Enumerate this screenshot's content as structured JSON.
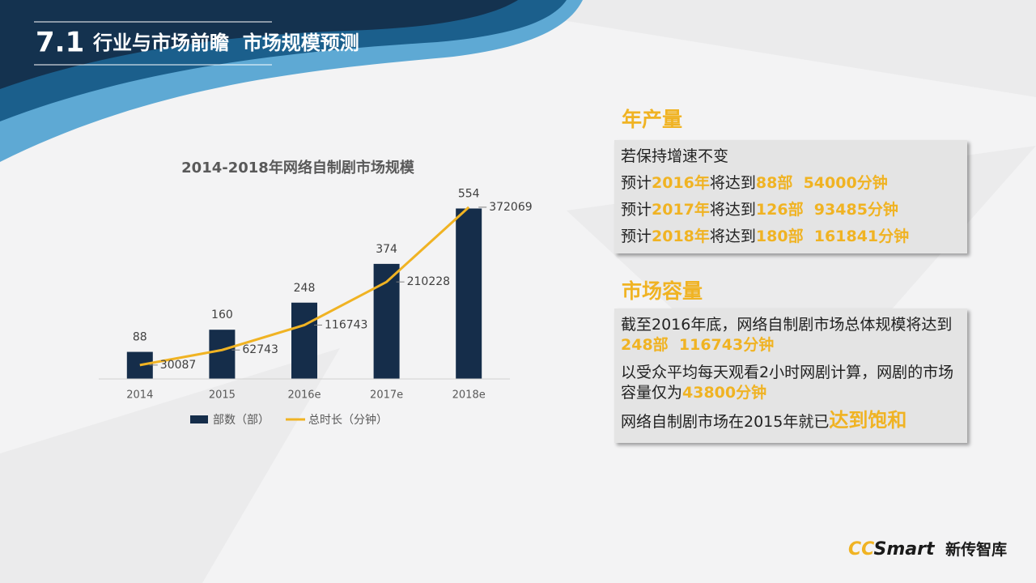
{
  "header": {
    "number": "7.1",
    "title": "行业与市场前瞻  市场规模预测"
  },
  "chart_data": {
    "type": "combo",
    "title": "2014-2018年网络自制剧市场规模",
    "categories": [
      "2014",
      "2015",
      "2016e",
      "2017e",
      "2018e"
    ],
    "series": [
      {
        "name": "部数（部）",
        "type": "bar",
        "color": "#152d4a",
        "values": [
          88,
          160,
          248,
          374,
          554
        ]
      },
      {
        "name": "总时长（分钟）",
        "type": "line",
        "axis": "y2",
        "color": "#f0b323",
        "values": [
          30087,
          62743,
          116743,
          210228,
          372069
        ]
      }
    ],
    "ylim": [
      0,
      600
    ],
    "y2lim": [
      0,
      400000
    ],
    "legend": "bottom"
  },
  "sections": [
    {
      "heading": "年产量",
      "lines": [
        [
          {
            "text": "若保持增速不变"
          }
        ],
        [
          {
            "text": "预计"
          },
          {
            "text": "2016年",
            "color": "#f0b323"
          },
          {
            "text": "将达到"
          },
          {
            "text": "88部  54000分钟",
            "color": "#f0b323"
          }
        ],
        [
          {
            "text": "预计"
          },
          {
            "text": "2017年",
            "color": "#f0b323"
          },
          {
            "text": "将达到"
          },
          {
            "text": "126部  93485分钟",
            "color": "#f0b323"
          }
        ],
        [
          {
            "text": "预计"
          },
          {
            "text": "2018年",
            "color": "#f0b323"
          },
          {
            "text": "将达到"
          },
          {
            "text": "180部  161841分钟",
            "color": "#f0b323"
          }
        ]
      ]
    },
    {
      "heading": "市场容量",
      "lines": [
        [
          {
            "text": "截至2016年底，网络自制剧市场总体规模将达到 "
          },
          {
            "text": "248部  116743分钟",
            "color": "#f0b323"
          }
        ],
        [
          {
            "text": "以受众平均每天观看2小时网剧计算，网剧的市场容量仅为"
          },
          {
            "text": "43800分钟",
            "color": "#f0b323"
          }
        ],
        [
          {
            "text": "网络自制剧市场在2015年就已"
          },
          {
            "text": "达到饱和",
            "color": "#f0b323",
            "font_size": 24
          }
        ]
      ]
    }
  ],
  "logo": {
    "brand": [
      "CC",
      "Smart"
    ],
    "name": "新传智库"
  }
}
